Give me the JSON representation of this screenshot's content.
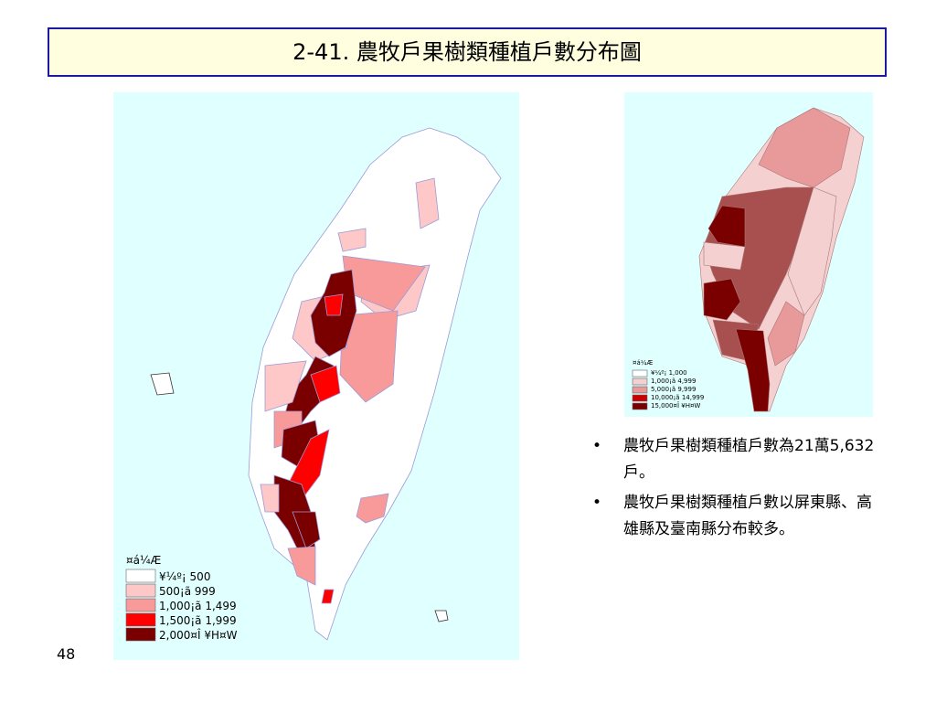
{
  "header": {
    "title": "2-41. 農牧戶果樹類種植戶數分布圖"
  },
  "left_map": {
    "legend": {
      "title": "¤á¼Æ",
      "items": [
        {
          "label": "¥¼º¡ 500",
          "color": "#ffffff"
        },
        {
          "label": "500¡ã 999",
          "color": "#ffc8c8"
        },
        {
          "label": "1,000¡ã 1,499",
          "color": "#f89a9a"
        },
        {
          "label": "1,500¡ã 1,999",
          "color": "#ff0000"
        },
        {
          "label": "2,000¤Î ¥H¤W",
          "color": "#7a0000"
        }
      ]
    }
  },
  "right_map": {
    "legend": {
      "title": "¤á¼Æ",
      "items": [
        {
          "label": "¥¼º¡ 1,000",
          "color": "#ffffff"
        },
        {
          "label": "1,000¡ã 4,999",
          "color": "#f4d0d0"
        },
        {
          "label": "5,000¡ã 9,999",
          "color": "#e89a9a"
        },
        {
          "label": "10,000¡ã 14,999",
          "color": "#cc0000"
        },
        {
          "label": "15,000¤Î ¥H¤W",
          "color": "#7a0000"
        }
      ]
    }
  },
  "bullets": [
    "農牧戶果樹類種植戶數為21萬5,632戶。",
    "農牧戶果樹類種植戶數以屏東縣、高雄縣及臺南縣分布較多。"
  ],
  "footer": {
    "page_number": "48"
  }
}
